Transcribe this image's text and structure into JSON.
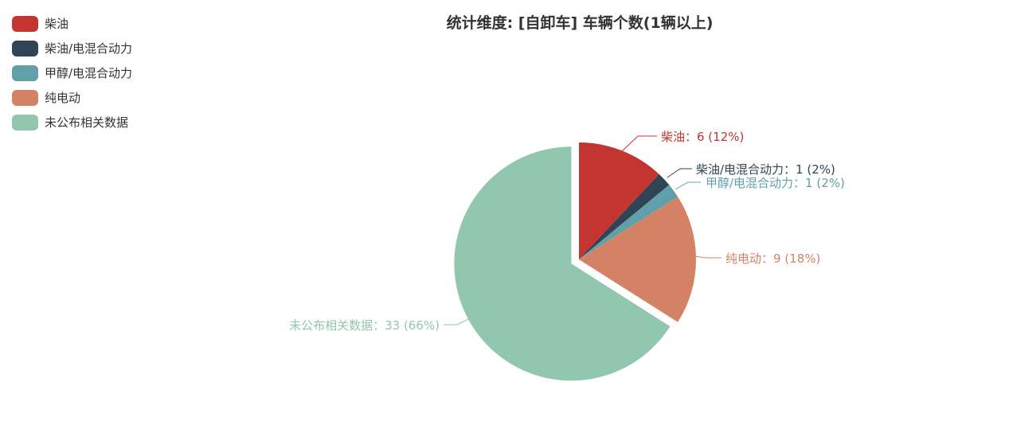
{
  "chart_data": {
    "type": "pie",
    "title": "统计维度: [自卸车] 车辆个数(1辆以上)",
    "legend_position": "top-left",
    "slices": [
      {
        "name": "柴油",
        "value": 6,
        "percent": "12%",
        "color": "#c23531"
      },
      {
        "name": "柴油/电混合动力",
        "value": 1,
        "percent": "2%",
        "color": "#2f4554"
      },
      {
        "name": "甲醇/电混合动力",
        "value": 1,
        "percent": "2%",
        "color": "#61a0a8"
      },
      {
        "name": "纯电动",
        "value": 9,
        "percent": "18%",
        "color": "#d48265"
      },
      {
        "name": "未公布相关数据",
        "value": 33,
        "percent": "66%",
        "color": "#91c7ae",
        "selected": true
      }
    ]
  }
}
